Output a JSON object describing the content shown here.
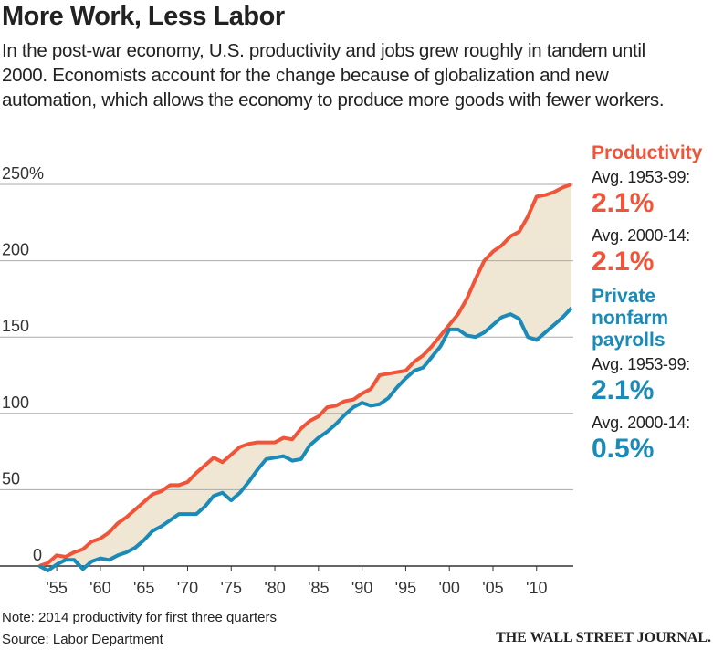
{
  "chart_data": {
    "type": "line",
    "title": "More Work, Less Labor",
    "subtitle": "In the post-war economy, U.S. productivity and jobs grew roughly in tandem until 2000. Economists account for the change because of globalization and new automation, which allows the economy to produce more goods with fewer workers.",
    "x": [
      1953,
      1954,
      1955,
      1956,
      1957,
      1958,
      1959,
      1960,
      1961,
      1962,
      1963,
      1964,
      1965,
      1966,
      1967,
      1968,
      1969,
      1970,
      1971,
      1972,
      1973,
      1974,
      1975,
      1976,
      1977,
      1978,
      1979,
      1980,
      1981,
      1982,
      1983,
      1984,
      1985,
      1986,
      1987,
      1988,
      1989,
      1990,
      1991,
      1992,
      1993,
      1994,
      1995,
      1996,
      1997,
      1998,
      1999,
      2000,
      2001,
      2002,
      2003,
      2004,
      2005,
      2006,
      2007,
      2008,
      2009,
      2010,
      2011,
      2012,
      2013,
      2014
    ],
    "series": [
      {
        "name": "Productivity",
        "color": "#f0553a",
        "values": [
          0,
          2,
          7,
          6,
          9,
          11,
          16,
          18,
          22,
          28,
          32,
          37,
          42,
          47,
          49,
          53,
          53,
          55,
          61,
          66,
          71,
          68,
          73,
          78,
          80,
          81,
          81,
          81,
          84,
          83,
          90,
          95,
          98,
          104,
          105,
          108,
          109,
          113,
          116,
          125,
          126,
          127,
          128,
          134,
          138,
          144,
          151,
          158,
          165,
          175,
          188,
          200,
          206,
          210,
          216,
          219,
          229,
          242,
          243,
          245,
          248,
          250
        ],
        "averages": [
          {
            "period": "Avg. 1953-99:",
            "value": 2.1,
            "label": "2.1%"
          },
          {
            "period": "Avg. 2000-14:",
            "value": 2.1,
            "label": "2.1%"
          }
        ]
      },
      {
        "name": "Private nonfarm payrolls",
        "color": "#1a8ab8",
        "values": [
          0,
          -3,
          1,
          4,
          4,
          -2,
          3,
          5,
          4,
          7,
          9,
          12,
          17,
          23,
          26,
          30,
          34,
          34,
          34,
          39,
          46,
          48,
          43,
          48,
          55,
          63,
          70,
          71,
          72,
          69,
          70,
          79,
          84,
          88,
          93,
          99,
          104,
          107,
          105,
          106,
          110,
          117,
          123,
          128,
          130,
          137,
          144,
          155,
          155,
          151,
          150,
          153,
          158,
          163,
          165,
          162,
          150,
          148,
          153,
          158,
          163,
          169
        ],
        "averages": [
          {
            "period": "Avg. 1953-99:",
            "value": 2.1,
            "label": "2.1%"
          },
          {
            "period": "Avg. 2000-14:",
            "value": 0.5,
            "label": "0.5%"
          }
        ]
      }
    ],
    "fill_between": "#efe6d4",
    "xlim": [
      1953,
      2014
    ],
    "xticks": [
      {
        "value": 1955,
        "label": "'55"
      },
      {
        "value": 1960,
        "label": "'60"
      },
      {
        "value": 1965,
        "label": "'65"
      },
      {
        "value": 1970,
        "label": "'70"
      },
      {
        "value": 1975,
        "label": "'75"
      },
      {
        "value": 1980,
        "label": "'80"
      },
      {
        "value": 1985,
        "label": "'85"
      },
      {
        "value": 1990,
        "label": "'90"
      },
      {
        "value": 1995,
        "label": "'95"
      },
      {
        "value": 2000,
        "label": "'00"
      },
      {
        "value": 2005,
        "label": "'05"
      },
      {
        "value": 2010,
        "label": "'10"
      }
    ],
    "ylim": [
      0,
      250
    ],
    "yticks": [
      0,
      50,
      100,
      150,
      200,
      {
        "value": 250,
        "label": "250%"
      }
    ],
    "grid": true,
    "note": "Note: 2014 productivity for first three quarters",
    "source": "Source: Labor Department",
    "credit": "THE WALL STREET JOURNAL."
  }
}
